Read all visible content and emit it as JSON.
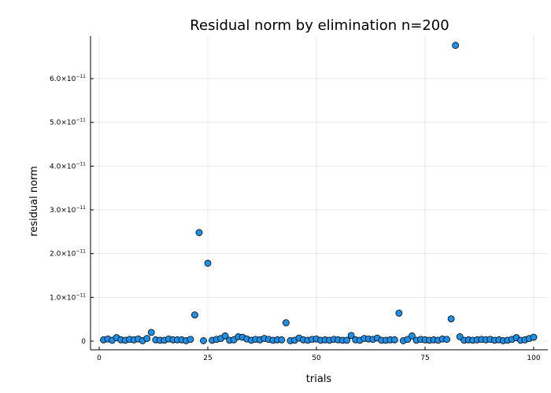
{
  "chart_data": {
    "type": "scatter",
    "title": "Residual norm by elimination  n=200",
    "xlabel": "trials",
    "ylabel": "residual norm",
    "xlim": [
      0,
      101
    ],
    "ylim": [
      -2e-12,
      6.9e-11
    ],
    "x_ticks": [
      {
        "value": 0,
        "label": "0"
      },
      {
        "value": 25,
        "label": "25"
      },
      {
        "value": 50,
        "label": "50"
      },
      {
        "value": 75,
        "label": "75"
      },
      {
        "value": 100,
        "label": "100"
      }
    ],
    "y_ticks": [
      {
        "value": 0,
        "mantissa": "0",
        "exponent": ""
      },
      {
        "value": 1e-11,
        "mantissa": "1.0×10",
        "exponent": "−11"
      },
      {
        "value": 2e-11,
        "mantissa": "2.0×10",
        "exponent": "−11"
      },
      {
        "value": 3e-11,
        "mantissa": "3.0×10",
        "exponent": "−11"
      },
      {
        "value": 4e-11,
        "mantissa": "4.0×10",
        "exponent": "−11"
      },
      {
        "value": 5e-11,
        "mantissa": "5.0×10",
        "exponent": "−11"
      },
      {
        "value": 6e-11,
        "mantissa": "6.0×10",
        "exponent": "−11"
      }
    ],
    "grid": true,
    "marker_color": "#1e90e6",
    "x": [
      1,
      2,
      3,
      4,
      5,
      6,
      7,
      8,
      9,
      10,
      11,
      12,
      13,
      14,
      15,
      16,
      17,
      18,
      19,
      20,
      21,
      22,
      23,
      24,
      25,
      26,
      27,
      28,
      29,
      30,
      31,
      32,
      33,
      34,
      35,
      36,
      37,
      38,
      39,
      40,
      41,
      42,
      43,
      44,
      45,
      46,
      47,
      48,
      49,
      50,
      51,
      52,
      53,
      54,
      55,
      56,
      57,
      58,
      59,
      60,
      61,
      62,
      63,
      64,
      65,
      66,
      67,
      68,
      69,
      70,
      71,
      72,
      73,
      74,
      75,
      76,
      77,
      78,
      79,
      80,
      81,
      82,
      83,
      84,
      85,
      86,
      87,
      88,
      89,
      90,
      91,
      92,
      93,
      94,
      95,
      96,
      97,
      98,
      99,
      100
    ],
    "values": [
      3e-13,
      5e-13,
      2e-13,
      8e-13,
      3e-13,
      2e-13,
      4e-13,
      3e-13,
      5e-13,
      1e-13,
      6e-13,
      2e-12,
      3e-13,
      2e-13,
      2e-13,
      5e-13,
      3e-13,
      3e-13,
      3e-13,
      1e-13,
      4e-13,
      6e-12,
      2.48e-11,
      1e-13,
      1.78e-11,
      2e-13,
      4e-13,
      6e-13,
      1.2e-12,
      2e-13,
      3e-13,
      1e-12,
      9e-13,
      5e-13,
      2e-13,
      4e-13,
      3e-13,
      6e-13,
      4e-13,
      2e-13,
      3e-13,
      3e-13,
      4.2e-12,
      1e-13,
      2e-13,
      7e-13,
      3e-13,
      2e-13,
      4e-13,
      5e-13,
      2e-13,
      3e-13,
      2e-13,
      4e-13,
      3e-13,
      2e-13,
      2e-13,
      1.3e-12,
      3e-13,
      2e-13,
      6e-13,
      5e-13,
      4e-13,
      7e-13,
      2e-13,
      2e-13,
      3e-13,
      3e-13,
      6.4e-12,
      1e-13,
      4e-13,
      1.2e-12,
      2e-13,
      4e-13,
      3e-13,
      2e-13,
      3e-13,
      2e-13,
      5e-13,
      4e-13,
      5.1e-12,
      6.76e-11,
      1e-12,
      2e-13,
      3e-13,
      2e-13,
      3e-13,
      4e-13,
      3e-13,
      4e-13,
      2e-13,
      3e-13,
      1e-13,
      2e-13,
      4e-13,
      8e-13,
      2e-13,
      3e-13,
      6e-13,
      9e-13
    ]
  }
}
